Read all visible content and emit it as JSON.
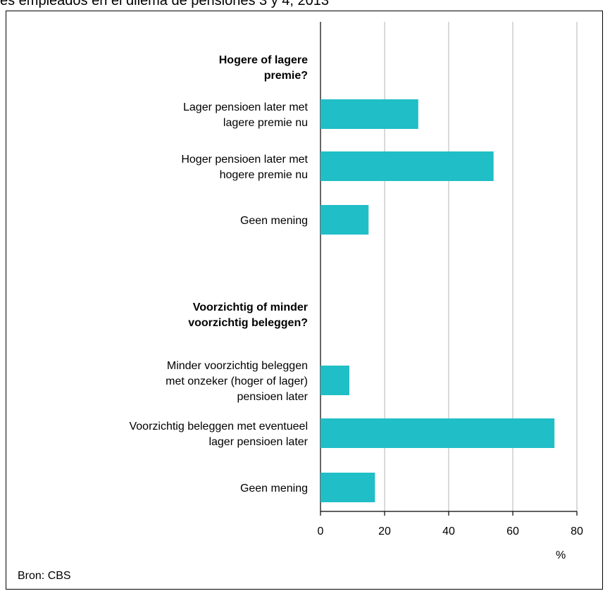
{
  "title": "es empleados en el dilema de pensiones 3 y 4, 2013",
  "source": "Bron: CBS",
  "colors": {
    "bar": "#20BEC6",
    "grid": "#C0C0C0",
    "axis": "#000000"
  },
  "chart_data": {
    "type": "bar",
    "orientation": "horizontal",
    "unit_label": "%",
    "xlim": [
      0,
      80
    ],
    "x_ticks": [
      "0",
      "20",
      "40",
      "60",
      "80"
    ],
    "grid": true,
    "groups": [
      {
        "header": [
          "Hogere of lagere",
          "premie?"
        ],
        "items": [
          {
            "label": [
              "Lager pensioen later met",
              "lagere premie nu"
            ],
            "value": 30.5
          },
          {
            "label": [
              "Hoger pensioen later met",
              "hogere premie nu"
            ],
            "value": 54
          },
          {
            "label": [
              "Geen mening"
            ],
            "value": 15
          }
        ]
      },
      {
        "header": [
          "Voorzichtig of minder",
          "voorzichtig beleggen?"
        ],
        "items": [
          {
            "label": [
              "Minder voorzichtig beleggen",
              "met onzeker (hoger of lager)",
              "pensioen later"
            ],
            "value": 9
          },
          {
            "label": [
              "Voorzichtig beleggen met eventueel",
              "lager pensioen later"
            ],
            "value": 73
          },
          {
            "label": [
              "Geen mening"
            ],
            "value": 17
          }
        ]
      }
    ]
  }
}
